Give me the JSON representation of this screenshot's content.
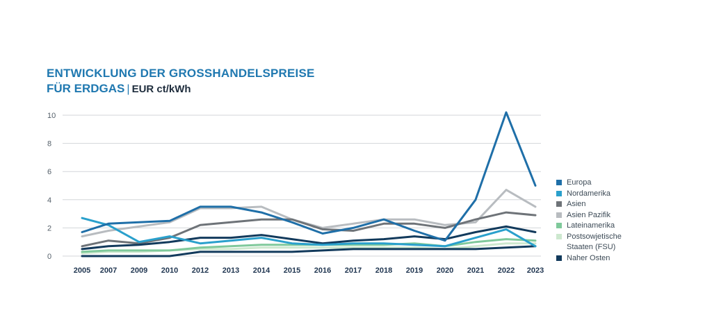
{
  "title": {
    "line1": "ENTWICKLUNG DER GROSSHANDELSPREISE",
    "line2": "FÜR ERDGAS",
    "separator": "|",
    "unit": "EUR ct/kWh"
  },
  "chart_data": {
    "type": "line",
    "x": [
      "2005",
      "2007",
      "2009",
      "2010",
      "2012",
      "2013",
      "2014",
      "2015",
      "2016",
      "2017",
      "2018",
      "2019",
      "2020",
      "2021",
      "2022",
      "2023"
    ],
    "ylim": [
      0,
      10.5
    ],
    "yticks": [
      0,
      2,
      4,
      6,
      8,
      10
    ],
    "grid": true,
    "legend_position": "right",
    "series": [
      {
        "name": "Europa",
        "color": "#1f6fa8",
        "values": [
          1.7,
          2.3,
          2.4,
          2.5,
          3.5,
          3.5,
          3.1,
          2.4,
          1.6,
          2.0,
          2.6,
          1.8,
          1.1,
          4.0,
          10.2,
          5.0
        ]
      },
      {
        "name": "Nordamerika",
        "color": "#2aa0cc",
        "values": [
          2.7,
          2.2,
          1.0,
          1.4,
          0.9,
          1.1,
          1.3,
          0.9,
          0.8,
          0.9,
          0.9,
          0.8,
          0.7,
          1.3,
          1.9,
          0.7
        ]
      },
      {
        "name": "Asien",
        "color": "#6e7378",
        "values": [
          0.7,
          1.1,
          0.9,
          1.3,
          2.2,
          2.4,
          2.6,
          2.6,
          1.9,
          1.8,
          2.3,
          2.3,
          2.0,
          2.6,
          3.1,
          2.9
        ]
      },
      {
        "name": "Asien Pazifik",
        "color": "#b8bcc0",
        "values": [
          1.4,
          1.8,
          2.1,
          2.4,
          3.4,
          3.4,
          3.5,
          2.6,
          2.0,
          2.3,
          2.6,
          2.6,
          2.2,
          2.4,
          4.7,
          3.5
        ]
      },
      {
        "name": "Lateinamerika",
        "color": "#7fc99b",
        "values": [
          0.3,
          0.4,
          0.4,
          0.4,
          0.6,
          0.7,
          0.8,
          0.8,
          0.8,
          0.8,
          0.8,
          0.9,
          0.7,
          1.0,
          1.2,
          1.1
        ]
      },
      {
        "name": "Postsowjetische Staaten (FSU)",
        "color": "#cde8cf",
        "values": [
          0.2,
          0.3,
          0.3,
          0.4,
          0.5,
          0.5,
          0.6,
          0.6,
          0.6,
          0.6,
          0.6,
          0.6,
          0.5,
          0.7,
          0.9,
          0.9
        ]
      },
      {
        "name": "Naher Osten",
        "color": "#123a5c",
        "values": [
          0.5,
          0.7,
          0.8,
          1.0,
          1.3,
          1.3,
          1.5,
          1.2,
          0.9,
          1.1,
          1.2,
          1.4,
          1.2,
          1.7,
          2.1,
          1.7
        ]
      },
      {
        "name": "",
        "color": "#123a5c",
        "values": [
          0.0,
          0.0,
          0.0,
          0.0,
          0.3,
          0.3,
          0.3,
          0.3,
          0.4,
          0.5,
          0.5,
          0.5,
          0.5,
          0.5,
          0.6,
          0.7
        ]
      }
    ]
  }
}
